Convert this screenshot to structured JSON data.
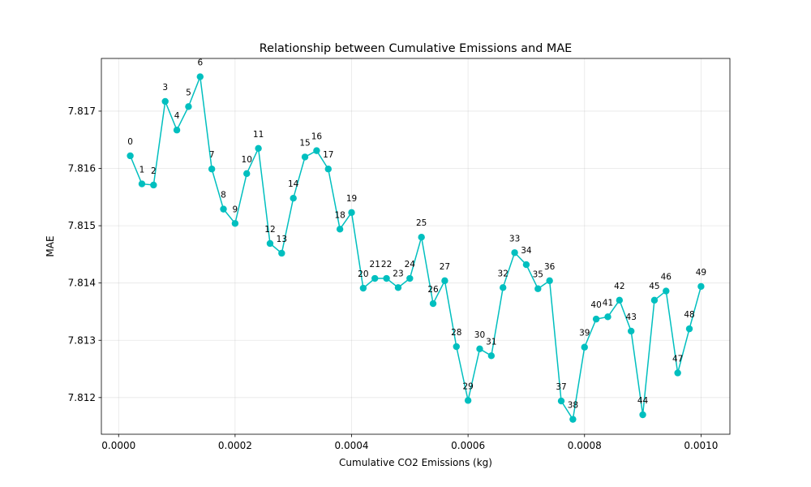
{
  "chart_data": {
    "type": "line",
    "title": "Relationship between Cumulative Emissions and MAE",
    "xlabel": "Cumulative CO2 Emissions (kg)",
    "ylabel": "MAE",
    "xlim": [
      -2.96e-05,
      0.0010496
    ],
    "ylim": [
      7.81136,
      7.81792
    ],
    "xticks": [
      0.0,
      0.0002,
      0.0004,
      0.0006,
      0.0008,
      0.001
    ],
    "xtick_labels": [
      "0.0000",
      "0.0002",
      "0.0004",
      "0.0006",
      "0.0008",
      "0.0010"
    ],
    "yticks": [
      7.812,
      7.813,
      7.814,
      7.815,
      7.816,
      7.817
    ],
    "ytick_labels": [
      "7.812",
      "7.813",
      "7.814",
      "7.815",
      "7.816",
      "7.817"
    ],
    "grid": true,
    "color": "#00bfbf",
    "x": [
      2e-05,
      4e-05,
      6e-05,
      8e-05,
      0.0001,
      0.00012,
      0.00014,
      0.00016,
      0.00018,
      0.0002,
      0.00022,
      0.00024,
      0.00026,
      0.00028,
      0.0003,
      0.00032,
      0.00034,
      0.00036,
      0.00038,
      0.0004,
      0.00042,
      0.00044,
      0.00046,
      0.00048,
      0.0005,
      0.00052,
      0.00054,
      0.00056,
      0.00058,
      0.0006,
      0.00062,
      0.00064,
      0.00066,
      0.00068,
      0.0007,
      0.00072,
      0.00074,
      0.00076,
      0.00078,
      0.0008,
      0.00082,
      0.00084,
      0.00086,
      0.00088,
      0.0009,
      0.00092,
      0.00094,
      0.00096,
      0.00098,
      0.001
    ],
    "y": [
      7.81622,
      7.81573,
      7.81571,
      7.81717,
      7.81667,
      7.81708,
      7.8176,
      7.81599,
      7.81529,
      7.81504,
      7.81591,
      7.81635,
      7.81469,
      7.81452,
      7.81548,
      7.8162,
      7.81631,
      7.81599,
      7.81494,
      7.81523,
      7.81391,
      7.81408,
      7.81408,
      7.81392,
      7.81408,
      7.8148,
      7.81364,
      7.81404,
      7.81289,
      7.81195,
      7.81285,
      7.81273,
      7.81392,
      7.81453,
      7.81432,
      7.8139,
      7.81404,
      7.81194,
      7.81162,
      7.81288,
      7.81337,
      7.81341,
      7.8137,
      7.81316,
      7.8117,
      7.8137,
      7.81386,
      7.81243,
      7.8132,
      7.81394
    ],
    "point_labels": [
      "0",
      "1",
      "2",
      "3",
      "4",
      "5",
      "6",
      "7",
      "8",
      "9",
      "10",
      "11",
      "12",
      "13",
      "14",
      "15",
      "16",
      "17",
      "18",
      "19",
      "20",
      "21",
      "22",
      "23",
      "24",
      "25",
      "26",
      "27",
      "28",
      "29",
      "30",
      "31",
      "32",
      "33",
      "34",
      "35",
      "36",
      "37",
      "38",
      "39",
      "40",
      "41",
      "42",
      "43",
      "44",
      "45",
      "46",
      "47",
      "48",
      "49"
    ]
  }
}
